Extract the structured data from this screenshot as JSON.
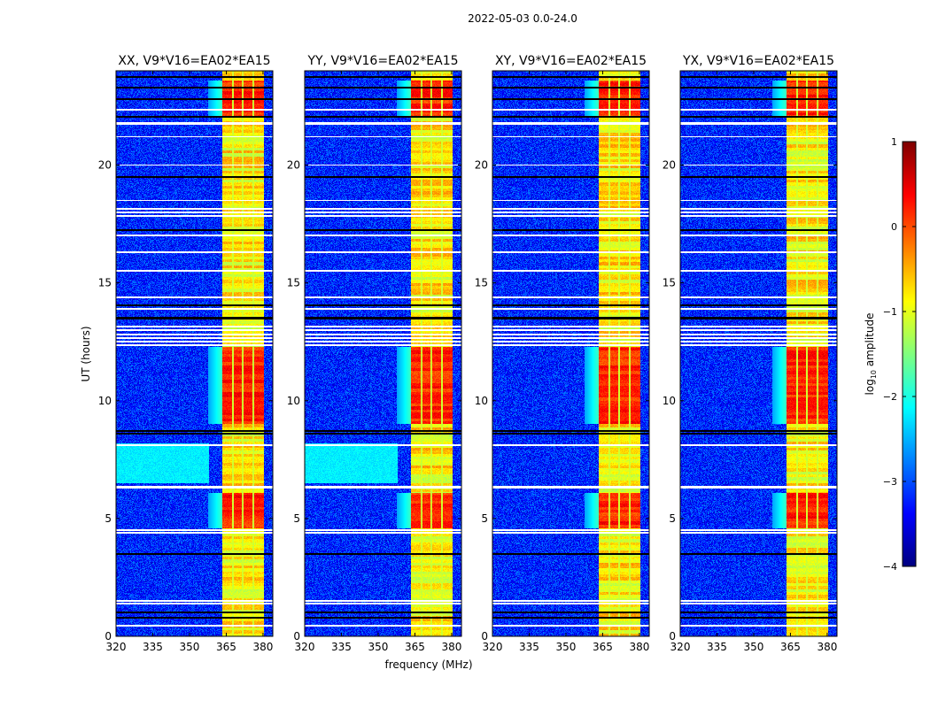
{
  "suptitle": "2022-05-03 0.0-24.0",
  "chart_data": {
    "type": "heatmap",
    "xlabel": "frequency (MHz)",
    "ylabel": "UT (hours)",
    "xlim": [
      320,
      384
    ],
    "ylim": [
      0,
      24
    ],
    "xticks": [
      320,
      335,
      350,
      365,
      380
    ],
    "yticks": [
      0,
      5,
      10,
      15,
      20
    ],
    "panels": [
      {
        "id": "xx",
        "title": "XX, V9*V16=EA02*EA15",
        "low_freq_excess": true
      },
      {
        "id": "yy",
        "title": "YY, V9*V16=EA02*EA15",
        "low_freq_excess": true
      },
      {
        "id": "xy",
        "title": "XY, V9*V16=EA02*EA15",
        "low_freq_excess": false
      },
      {
        "id": "yx",
        "title": "YX, V9*V16=EA02*EA15",
        "low_freq_excess": false
      }
    ],
    "background_log_amplitude": -3.2,
    "rfi_band_mhz": [
      363.5,
      380.5
    ],
    "rfi_subband_edges_mhz": [
      367.6,
      371.8,
      375.9
    ],
    "rfi_band_log_amplitude": -0.8,
    "strong_rfi_hours": [
      [
        4.6,
        6.1
      ],
      [
        9.0,
        12.3
      ],
      [
        22.0,
        23.6
      ]
    ],
    "strong_rfi_log_amplitude": 0.2,
    "flagged_hours_white": [
      0.45,
      1.4,
      1.5,
      4.4,
      4.5,
      6.3,
      6.35,
      8.1,
      12.35,
      12.5,
      12.65,
      12.8,
      13.0,
      13.15,
      13.9,
      14.4,
      15.5,
      16.3,
      17.0,
      17.85,
      18.0,
      18.15,
      18.5,
      20.0,
      21.2,
      21.75,
      21.8,
      22.35
    ],
    "flagged_hours_black": [
      0.8,
      1.0,
      3.5,
      8.6,
      8.7,
      13.5,
      14.05,
      17.25,
      19.5,
      22.05,
      22.8,
      23.3,
      23.75
    ],
    "colorbar": {
      "label_main": "log",
      "label_sub": "10",
      "label_rest": " amplitude",
      "range": [
        -4,
        1
      ],
      "ticks": [
        -4,
        -3,
        -2,
        -1,
        0,
        1
      ],
      "tick_labels": [
        "−4",
        "−3",
        "−2",
        "−1",
        "0",
        "1"
      ],
      "colormap": "jet"
    }
  }
}
